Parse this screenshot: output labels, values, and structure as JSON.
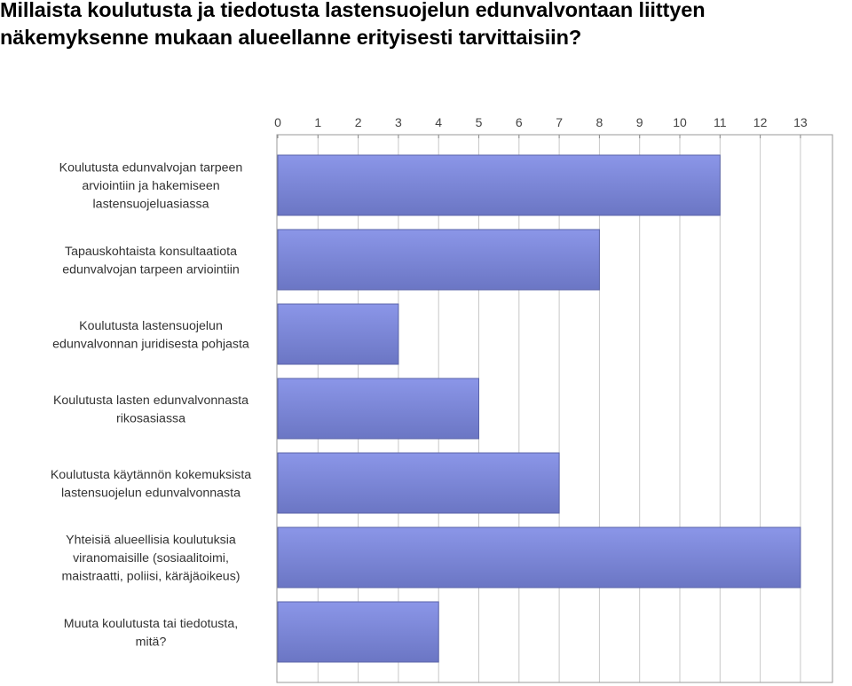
{
  "title": "Millaista koulutusta ja tiedotusta lastensuojelun edunvalvontaan liittyen näkemyksenne mukaan alueellanne erityisesti tarvittaisiin?",
  "colors": {
    "bar_top": "#8b96e8",
    "bar_bottom": "#6b76c4",
    "bar_stroke": "#5a63a8",
    "grid": "#c8c8c8",
    "plot_border": "#9a9a9a",
    "background": "#ffffff"
  },
  "chart_data": {
    "type": "bar",
    "orientation": "horizontal",
    "xlim": [
      0,
      13
    ],
    "ticks": [
      "0",
      "1",
      "2",
      "3",
      "4",
      "5",
      "6",
      "7",
      "8",
      "9",
      "10",
      "11",
      "12",
      "13"
    ],
    "tick_position": "top",
    "grid": true,
    "categories": [
      [
        "Koulutusta edunvalvojan tarpeen",
        "arviointiin ja hakemiseen",
        "lastensuojeluasiassa"
      ],
      [
        "Tapauskohtaista konsultaatiota",
        "edunvalvojan tarpeen arviointiin"
      ],
      [
        "Koulutusta lastensuojelun",
        "edunvalvonnan juridisesta pohjasta"
      ],
      [
        "Koulutusta lasten edunvalvonnasta",
        "rikosasiassa"
      ],
      [
        "Koulutusta käytännön kokemuksista",
        "lastensuojelun edunvalvonnasta"
      ],
      [
        "Yhteisiä alueellisia koulutuksia",
        "viranomaisille (sosiaalitoimi,",
        "maistraatti, poliisi, käräjäoikeus)"
      ],
      [
        "Muuta koulutusta tai tiedotusta,",
        "mitä?"
      ]
    ],
    "values": [
      11,
      8,
      3,
      5,
      7,
      13,
      4
    ]
  }
}
